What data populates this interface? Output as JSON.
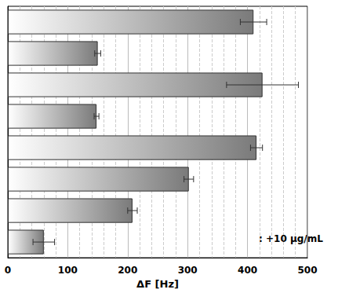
{
  "chart_data": {
    "type": "bar",
    "orientation": "horizontal",
    "categories": [
      null,
      null,
      null,
      null,
      null,
      null,
      null,
      null
    ],
    "values": [
      410,
      150,
      425,
      148,
      415,
      302,
      208,
      60
    ],
    "errors": [
      22,
      5,
      60,
      4,
      10,
      8,
      8,
      18
    ],
    "color": "#7a7a7a",
    "xlabel": "ΔF [Hz]",
    "xlim": [
      0,
      500
    ],
    "xticks": [
      0,
      100,
      200,
      300,
      400,
      500
    ],
    "grid": true,
    "tick_labels": "x",
    "annotation": ": +10 µg/mL"
  }
}
